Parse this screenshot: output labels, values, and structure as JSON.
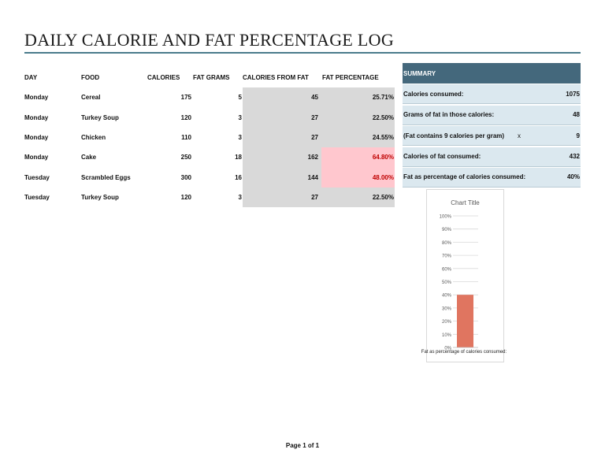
{
  "title": "DAILY CALORIE AND FAT PERCENTAGE LOG",
  "log": {
    "headers": {
      "day": "DAY",
      "food": "FOOD",
      "calories": "CALORIES",
      "fat_grams": "FAT GRAMS",
      "calories_from_fat": "CALORIES FROM FAT",
      "fat_percentage": "FAT PERCENTAGE"
    },
    "rows": [
      {
        "day": "Monday",
        "food": "Cereal",
        "calories": "175",
        "fat_grams": "5",
        "calories_from_fat": "45",
        "fat_percentage": "25.71%",
        "highlight": false
      },
      {
        "day": "Monday",
        "food": "Turkey Soup",
        "calories": "120",
        "fat_grams": "3",
        "calories_from_fat": "27",
        "fat_percentage": "22.50%",
        "highlight": false
      },
      {
        "day": "Monday",
        "food": "Chicken",
        "calories": "110",
        "fat_grams": "3",
        "calories_from_fat": "27",
        "fat_percentage": "24.55%",
        "highlight": false
      },
      {
        "day": "Monday",
        "food": "Cake",
        "calories": "250",
        "fat_grams": "18",
        "calories_from_fat": "162",
        "fat_percentage": "64.80%",
        "highlight": true
      },
      {
        "day": "Tuesday",
        "food": "Scrambled Eggs",
        "calories": "300",
        "fat_grams": "16",
        "calories_from_fat": "144",
        "fat_percentage": "48.00%",
        "highlight": true
      },
      {
        "day": "Tuesday",
        "food": "Turkey Soup",
        "calories": "120",
        "fat_grams": "3",
        "calories_from_fat": "27",
        "fat_percentage": "22.50%",
        "highlight": false
      }
    ],
    "highlight_bg": "#ffc7ce",
    "highlight_text": "#c00000"
  },
  "summary": {
    "header": "SUMMARY",
    "calories_consumed_label": "Calories consumed:",
    "calories_consumed_value": "1075",
    "grams_of_fat_label": "Grams of fat in those calories:",
    "grams_of_fat_value": "48",
    "fat_contains_label": "(Fat contains 9 calories per gram)",
    "fat_contains_x": "x",
    "fat_contains_value": "9",
    "calories_of_fat_label": "Calories of fat consumed:",
    "calories_of_fat_value": "432",
    "fat_pct_label": "Fat as percentage of calories consumed:",
    "fat_pct_value": "40%",
    "header_color": "#44687c"
  },
  "chart_data": {
    "type": "bar",
    "title": "Chart Title",
    "categories": [
      "Fat as percentage of calories consumed:"
    ],
    "values": [
      40
    ],
    "ylim": [
      0,
      100
    ],
    "yticks": [
      "0%",
      "10%",
      "20%",
      "30%",
      "40%",
      "50%",
      "60%",
      "70%",
      "80%",
      "90%",
      "100%"
    ],
    "grid": true,
    "bar_color": "#e07560"
  },
  "footer": "Page 1 of 1"
}
